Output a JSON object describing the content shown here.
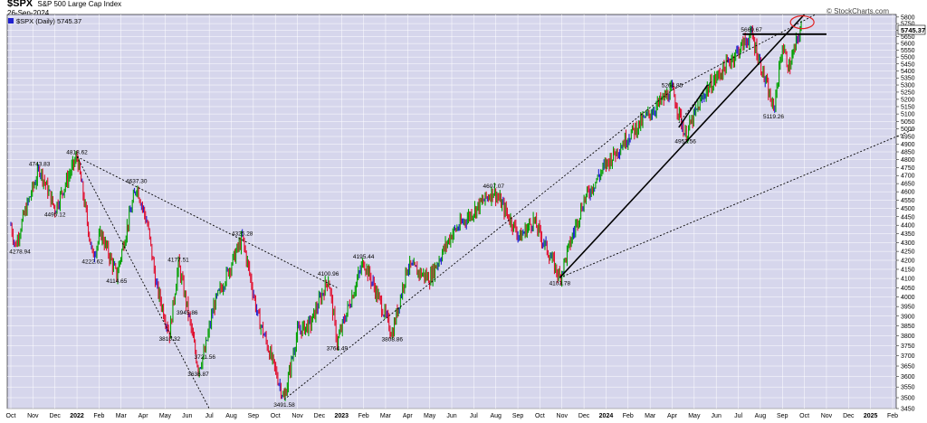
{
  "header": {
    "symbol": "$SPX",
    "name": "S&P 500 Large Cap Index",
    "date": "26-Sep-2024",
    "brand": "© StockCharts.com"
  },
  "colors": {
    "plot_bg": "#d6d6ec",
    "grid": "#ffffff",
    "up": "#00a000",
    "down": "#e01030",
    "flat": "#2020d0",
    "trend": "#000000",
    "highlight": "#e02020"
  },
  "chart_data": {
    "type": "ohlc",
    "title": "$SPX S&P 500 Large Cap Index",
    "legend": "$SPX (Daily) 5745.37",
    "last_value": "5745.37",
    "y_scale": "log",
    "ylim": [
      3450,
      5820
    ],
    "y_ticks": [
      3450,
      3500,
      3550,
      3600,
      3650,
      3700,
      3750,
      3800,
      3850,
      3900,
      3950,
      4000,
      4050,
      4100,
      4150,
      4200,
      4250,
      4300,
      4350,
      4400,
      4450,
      4500,
      4550,
      4600,
      4650,
      4700,
      4750,
      4800,
      4850,
      4900,
      4950,
      5000,
      5050,
      5100,
      5150,
      5200,
      5250,
      5300,
      5350,
      5400,
      5450,
      5500,
      5550,
      5600,
      5650,
      5700,
      5750,
      5800
    ],
    "x_ticks": [
      {
        "label": "Oct",
        "bold": false
      },
      {
        "label": "Nov",
        "bold": false
      },
      {
        "label": "Dec",
        "bold": false
      },
      {
        "label": "2022",
        "bold": true
      },
      {
        "label": "Feb",
        "bold": false
      },
      {
        "label": "Mar",
        "bold": false
      },
      {
        "label": "Apr",
        "bold": false
      },
      {
        "label": "May",
        "bold": false
      },
      {
        "label": "Jun",
        "bold": false
      },
      {
        "label": "Jul",
        "bold": false
      },
      {
        "label": "Aug",
        "bold": false
      },
      {
        "label": "Sep",
        "bold": false
      },
      {
        "label": "Oct",
        "bold": false
      },
      {
        "label": "Nov",
        "bold": false
      },
      {
        "label": "Dec",
        "bold": false
      },
      {
        "label": "2023",
        "bold": true
      },
      {
        "label": "Feb",
        "bold": false
      },
      {
        "label": "Mar",
        "bold": false
      },
      {
        "label": "Apr",
        "bold": false
      },
      {
        "label": "May",
        "bold": false
      },
      {
        "label": "Jun",
        "bold": false
      },
      {
        "label": "Jul",
        "bold": false
      },
      {
        "label": "Aug",
        "bold": false
      },
      {
        "label": "Sep",
        "bold": false
      },
      {
        "label": "Oct",
        "bold": false
      },
      {
        "label": "Nov",
        "bold": false
      },
      {
        "label": "Dec",
        "bold": false
      },
      {
        "label": "2024",
        "bold": true
      },
      {
        "label": "Feb",
        "bold": false
      },
      {
        "label": "Mar",
        "bold": false
      },
      {
        "label": "Apr",
        "bold": false
      },
      {
        "label": "May",
        "bold": false
      },
      {
        "label": "Jun",
        "bold": false
      },
      {
        "label": "Jul",
        "bold": false
      },
      {
        "label": "Aug",
        "bold": false
      },
      {
        "label": "Sep",
        "bold": false
      },
      {
        "label": "Oct",
        "bold": false
      },
      {
        "label": "Nov",
        "bold": false
      },
      {
        "label": "Dec",
        "bold": false
      },
      {
        "label": "2025",
        "bold": true
      },
      {
        "label": "Feb",
        "bold": false
      }
    ],
    "pivots": [
      {
        "m": 0.0,
        "v": 4400
      },
      {
        "m": 0.2,
        "v": 4278.94,
        "label": "4278.94"
      },
      {
        "m": 0.6,
        "v": 4460
      },
      {
        "m": 1.3,
        "v": 4743.83,
        "label": "4743.83"
      },
      {
        "m": 2.0,
        "v": 4495.12,
        "label": "4495.12"
      },
      {
        "m": 3.0,
        "v": 4818.62,
        "label": "4818.62"
      },
      {
        "m": 3.7,
        "v": 4222.62,
        "label": "4222.62"
      },
      {
        "m": 4.1,
        "v": 4350
      },
      {
        "m": 4.8,
        "v": 4114.65,
        "label": "4114.65"
      },
      {
        "m": 5.7,
        "v": 4637.3,
        "label": "4637.30"
      },
      {
        "m": 6.2,
        "v": 4400
      },
      {
        "m": 6.6,
        "v": 4060
      },
      {
        "m": 7.2,
        "v": 3810.32,
        "label": "3810.32"
      },
      {
        "m": 7.6,
        "v": 4177.51,
        "label": "4177.51"
      },
      {
        "m": 8.0,
        "v": 3945.86,
        "label": "3945.86"
      },
      {
        "m": 8.5,
        "v": 3636.87,
        "label": "3636.87"
      },
      {
        "m": 8.8,
        "v": 3721.56,
        "label": "3721.56"
      },
      {
        "m": 9.2,
        "v": 3950
      },
      {
        "m": 10.5,
        "v": 4325.28,
        "label": "4325.28"
      },
      {
        "m": 11.2,
        "v": 3900
      },
      {
        "m": 12.4,
        "v": 3491.58,
        "label": "3491.58"
      },
      {
        "m": 13.0,
        "v": 3820
      },
      {
        "m": 13.6,
        "v": 3860
      },
      {
        "m": 14.4,
        "v": 4100.96,
        "label": "4100.96"
      },
      {
        "m": 14.8,
        "v": 3764.49,
        "label": "3764.49"
      },
      {
        "m": 16.0,
        "v": 4195.44,
        "label": "4195.44"
      },
      {
        "m": 17.3,
        "v": 3808.86,
        "label": "3808.86"
      },
      {
        "m": 18.0,
        "v": 4170
      },
      {
        "m": 19.0,
        "v": 4100
      },
      {
        "m": 20.0,
        "v": 4350
      },
      {
        "m": 21.9,
        "v": 4607.07,
        "label": "4607.07"
      },
      {
        "m": 23.1,
        "v": 4330
      },
      {
        "m": 23.7,
        "v": 4430
      },
      {
        "m": 24.9,
        "v": 4103.78,
        "label": "4103.78"
      },
      {
        "m": 26.0,
        "v": 4550
      },
      {
        "m": 27.0,
        "v": 4770
      },
      {
        "m": 28.0,
        "v": 4950
      },
      {
        "m": 30.0,
        "v": 5264.85,
        "label": "5264.85"
      },
      {
        "m": 30.6,
        "v": 4953.56,
        "label": "4953.56"
      },
      {
        "m": 31.5,
        "v": 5250
      },
      {
        "m": 32.5,
        "v": 5450
      },
      {
        "m": 33.6,
        "v": 5669.67,
        "label": "5669.67"
      },
      {
        "m": 34.6,
        "v": 5119.26,
        "label": "5119.26"
      },
      {
        "m": 35.0,
        "v": 5580
      },
      {
        "m": 35.3,
        "v": 5420
      },
      {
        "m": 35.9,
        "v": 5745.37
      }
    ],
    "trendlines": [
      {
        "m1": 3.0,
        "v1": 4818.62,
        "m2": 9.0,
        "v2": 3450,
        "style": "dotted"
      },
      {
        "m1": 3.0,
        "v1": 4818.62,
        "m2": 14.8,
        "v2": 4050,
        "style": "dotted"
      },
      {
        "m1": 12.4,
        "v1": 3491.58,
        "m2": 30.0,
        "v2": 5264.85,
        "style": "dotted"
      },
      {
        "m1": 30.0,
        "v1": 5264.85,
        "m2": 36.5,
        "v2": 5820,
        "style": "dotted"
      },
      {
        "m1": 24.9,
        "v1": 4103.78,
        "m2": 41.0,
        "v2": 5000,
        "style": "dotted"
      },
      {
        "m1": 24.9,
        "v1": 4103.78,
        "m2": 36.0,
        "v2": 5820,
        "style": "solid"
      },
      {
        "m1": 30.3,
        "v1": 5010,
        "m2": 31.6,
        "v2": 5300,
        "style": "solid"
      },
      {
        "m1": 30.3,
        "v1": 5040,
        "m2": 31.8,
        "v2": 5330,
        "style": "dotted"
      },
      {
        "m1": 33.2,
        "v1": 5669.67,
        "m2": 37.0,
        "v2": 5669.67,
        "style": "solid-thick"
      }
    ],
    "highlight": {
      "m": 35.9,
      "v": 5760
    }
  }
}
